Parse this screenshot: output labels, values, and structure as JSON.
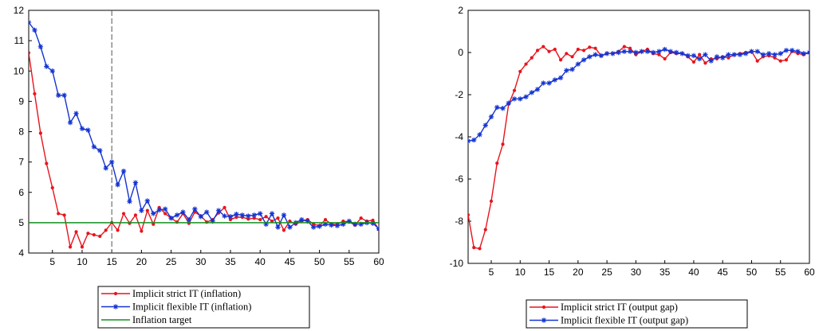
{
  "chart_data": [
    {
      "type": "line",
      "x": [
        1,
        2,
        3,
        4,
        5,
        6,
        7,
        8,
        9,
        10,
        11,
        12,
        13,
        14,
        15,
        16,
        17,
        18,
        19,
        20,
        21,
        22,
        23,
        24,
        25,
        26,
        27,
        28,
        29,
        30,
        31,
        32,
        33,
        34,
        35,
        36,
        37,
        38,
        39,
        40,
        41,
        42,
        43,
        44,
        45,
        46,
        47,
        48,
        49,
        50,
        51,
        52,
        53,
        54,
        55,
        56,
        57,
        58,
        59,
        60
      ],
      "xlim": [
        1,
        60
      ],
      "ylim": [
        4,
        12
      ],
      "xticks": [
        5,
        10,
        15,
        20,
        25,
        30,
        35,
        40,
        45,
        50,
        55,
        60
      ],
      "yticks": [
        4,
        5,
        6,
        7,
        8,
        9,
        10,
        11,
        12
      ],
      "vline_x": 15,
      "legend_position": "bottom",
      "series": [
        {
          "name": "Implicit strict IT (inflation)",
          "color": "#e8141c",
          "marker": "dot",
          "values": [
            10.6,
            9.25,
            7.95,
            6.95,
            6.15,
            5.3,
            5.25,
            4.2,
            4.7,
            4.2,
            4.65,
            4.6,
            4.55,
            4.75,
            5.0,
            4.75,
            5.3,
            4.98,
            5.25,
            4.72,
            5.4,
            4.95,
            5.5,
            5.3,
            5.15,
            5.02,
            5.3,
            4.98,
            5.35,
            5.22,
            5.02,
            5.1,
            5.32,
            5.5,
            5.1,
            5.18,
            5.18,
            5.12,
            5.15,
            5.1,
            5.2,
            5.05,
            5.15,
            4.75,
            5.05,
            4.95,
            5.05,
            5.1,
            4.95,
            4.9,
            5.1,
            4.95,
            4.95,
            5.05,
            5.02,
            4.92,
            5.15,
            5.05,
            5.08,
            4.78
          ]
        },
        {
          "name": "Implicit flexible IT (inflation)",
          "color": "#1434d2",
          "marker": "star",
          "values": [
            11.6,
            11.35,
            10.8,
            10.15,
            10.0,
            9.2,
            9.2,
            8.3,
            8.6,
            8.1,
            8.05,
            7.5,
            7.38,
            6.8,
            7.0,
            6.25,
            6.7,
            5.7,
            6.32,
            5.4,
            5.72,
            5.3,
            5.42,
            5.45,
            5.15,
            5.25,
            5.35,
            5.1,
            5.45,
            5.2,
            5.35,
            5.05,
            5.4,
            5.22,
            5.2,
            5.28,
            5.25,
            5.22,
            5.25,
            5.3,
            4.95,
            5.3,
            4.85,
            5.25,
            4.85,
            5.0,
            5.1,
            5.05,
            4.85,
            4.88,
            4.95,
            4.92,
            4.9,
            4.95,
            5.05,
            4.95,
            4.95,
            5.0,
            4.98,
            4.8
          ]
        },
        {
          "name": "Inflation target",
          "color": "#13901f",
          "marker": "none",
          "values": [
            5,
            5,
            5,
            5,
            5,
            5,
            5,
            5,
            5,
            5,
            5,
            5,
            5,
            5,
            5,
            5,
            5,
            5,
            5,
            5,
            5,
            5,
            5,
            5,
            5,
            5,
            5,
            5,
            5,
            5,
            5,
            5,
            5,
            5,
            5,
            5,
            5,
            5,
            5,
            5,
            5,
            5,
            5,
            5,
            5,
            5,
            5,
            5,
            5,
            5,
            5,
            5,
            5,
            5,
            5,
            5,
            5,
            5,
            5,
            5
          ]
        }
      ]
    },
    {
      "type": "line",
      "x": [
        1,
        2,
        3,
        4,
        5,
        6,
        7,
        8,
        9,
        10,
        11,
        12,
        13,
        14,
        15,
        16,
        17,
        18,
        19,
        20,
        21,
        22,
        23,
        24,
        25,
        26,
        27,
        28,
        29,
        30,
        31,
        32,
        33,
        34,
        35,
        36,
        37,
        38,
        39,
        40,
        41,
        42,
        43,
        44,
        45,
        46,
        47,
        48,
        49,
        50,
        51,
        52,
        53,
        54,
        55,
        56,
        57,
        58,
        59,
        60
      ],
      "xlim": [
        1,
        60
      ],
      "ylim": [
        -10,
        2
      ],
      "xticks": [
        5,
        10,
        15,
        20,
        25,
        30,
        35,
        40,
        45,
        50,
        55,
        60
      ],
      "yticks": [
        -10,
        -8,
        -6,
        -4,
        -2,
        0,
        2
      ],
      "legend_position": "bottom",
      "series": [
        {
          "name": "Implicit strict IT (output gap)",
          "color": "#e8141c",
          "marker": "dot",
          "values": [
            -7.7,
            -9.25,
            -9.3,
            -8.4,
            -7.05,
            -5.25,
            -4.35,
            -2.45,
            -1.8,
            -0.9,
            -0.55,
            -0.25,
            0.1,
            0.28,
            0.05,
            0.15,
            -0.35,
            -0.05,
            -0.2,
            0.15,
            0.1,
            0.25,
            0.2,
            -0.15,
            -0.05,
            -0.05,
            0.05,
            0.28,
            0.2,
            -0.1,
            0.05,
            0.15,
            -0.05,
            -0.1,
            -0.3,
            0.0,
            -0.05,
            -0.05,
            -0.2,
            -0.45,
            -0.1,
            -0.5,
            -0.3,
            -0.3,
            -0.2,
            -0.25,
            -0.1,
            -0.05,
            0.0,
            0.05,
            -0.4,
            -0.2,
            -0.15,
            -0.25,
            -0.4,
            -0.35,
            0.05,
            -0.05,
            -0.1,
            0.0
          ]
        },
        {
          "name": "Implicit flexible IT (output gap)",
          "color": "#1434d2",
          "marker": "star",
          "values": [
            -4.2,
            -4.15,
            -3.9,
            -3.45,
            -3.05,
            -2.6,
            -2.65,
            -2.4,
            -2.2,
            -2.2,
            -2.1,
            -1.9,
            -1.75,
            -1.45,
            -1.45,
            -1.3,
            -1.2,
            -0.85,
            -0.8,
            -0.55,
            -0.35,
            -0.2,
            -0.1,
            -0.15,
            -0.05,
            -0.05,
            0.0,
            0.05,
            0.05,
            0.0,
            0.05,
            0.05,
            0.0,
            0.05,
            0.15,
            0.05,
            0.0,
            -0.05,
            -0.15,
            -0.15,
            -0.3,
            -0.1,
            -0.4,
            -0.2,
            -0.25,
            -0.1,
            -0.1,
            -0.1,
            -0.05,
            0.05,
            0.05,
            -0.1,
            -0.05,
            -0.1,
            -0.05,
            0.1,
            0.1,
            0.05,
            -0.05,
            0.0
          ]
        }
      ]
    }
  ]
}
